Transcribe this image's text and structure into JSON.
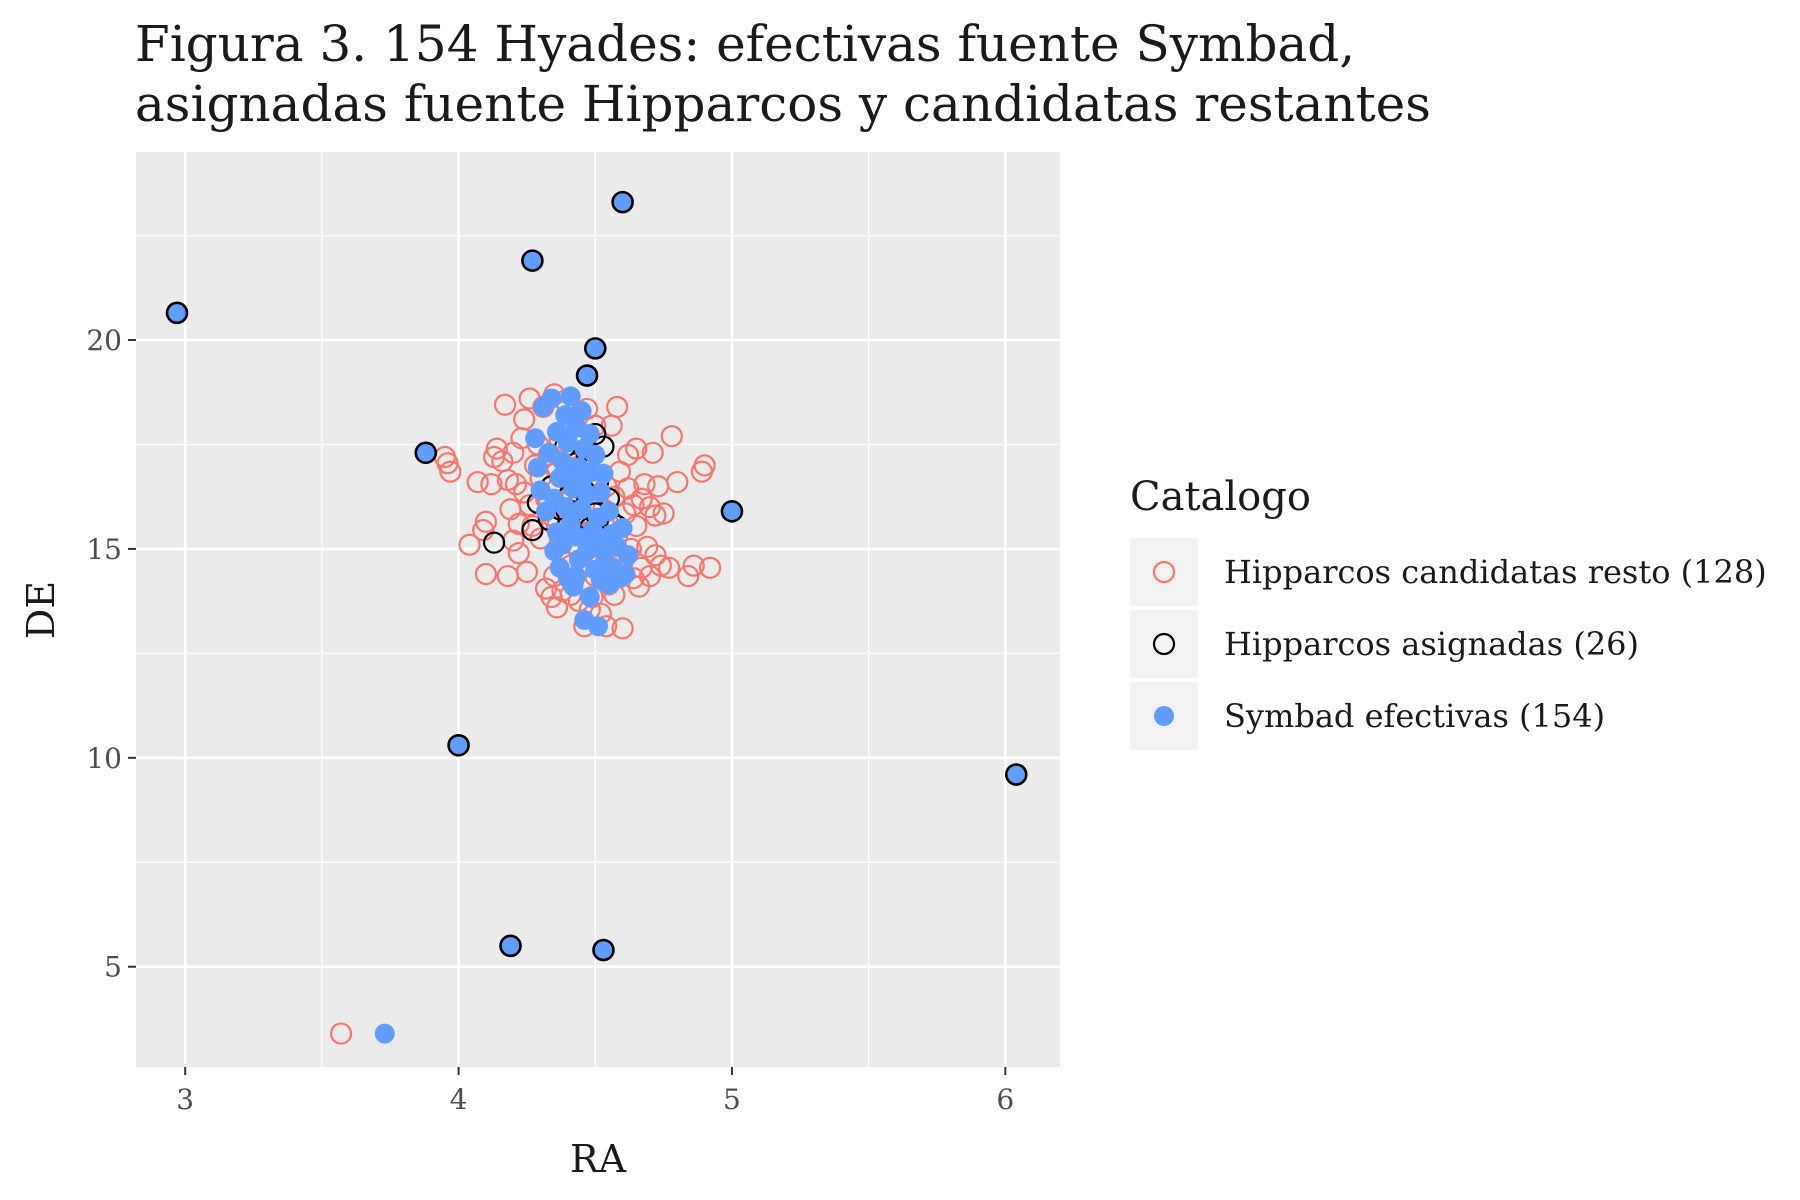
{
  "title_lines": [
    "Figura 3. 154 Hyades: efectivas fuente Symbad,",
    "asignadas fuente Hipparcos y candidatas restantes"
  ],
  "chart_data": {
    "type": "scatter",
    "xlabel": "RA",
    "ylabel": "DE",
    "xlim": [
      2.82,
      6.2
    ],
    "ylim": [
      2.6,
      24.5
    ],
    "x_ticks": [
      3,
      4,
      5,
      6
    ],
    "y_ticks": [
      5,
      10,
      15,
      20
    ],
    "grid": true,
    "legend_title": "Catalogo",
    "legend_position": "right",
    "series": [
      {
        "name": "Hipparcos candidatas resto (128)",
        "marker": "open-circle",
        "color": "#F8766D",
        "points": [
          [
            3.57,
            3.4
          ],
          [
            3.96,
            17.05
          ],
          [
            3.97,
            16.85
          ],
          [
            3.95,
            17.2
          ],
          [
            4.04,
            15.1
          ],
          [
            4.07,
            16.6
          ],
          [
            4.09,
            15.45
          ],
          [
            4.1,
            15.65
          ],
          [
            4.1,
            14.4
          ],
          [
            4.12,
            16.55
          ],
          [
            4.13,
            17.2
          ],
          [
            4.14,
            17.4
          ],
          [
            4.16,
            17.1
          ],
          [
            4.17,
            18.45
          ],
          [
            4.18,
            16.65
          ],
          [
            4.18,
            14.35
          ],
          [
            4.19,
            15.95
          ],
          [
            4.2,
            15.2
          ],
          [
            4.2,
            17.3
          ],
          [
            4.21,
            16.55
          ],
          [
            4.22,
            15.6
          ],
          [
            4.22,
            14.9
          ],
          [
            4.23,
            17.65
          ],
          [
            4.24,
            16.35
          ],
          [
            4.24,
            18.1
          ],
          [
            4.25,
            14.45
          ],
          [
            4.26,
            16.05
          ],
          [
            4.26,
            18.6
          ],
          [
            4.27,
            15.55
          ],
          [
            4.28,
            17.0
          ],
          [
            4.29,
            17.5
          ],
          [
            4.3,
            16.7
          ],
          [
            4.3,
            15.25
          ],
          [
            4.31,
            18.4
          ],
          [
            4.32,
            14.05
          ],
          [
            4.32,
            16.2
          ],
          [
            4.33,
            17.25
          ],
          [
            4.34,
            13.85
          ],
          [
            4.34,
            15.8
          ],
          [
            4.35,
            18.7
          ],
          [
            4.35,
            14.35
          ],
          [
            4.36,
            16.85
          ],
          [
            4.36,
            13.6
          ],
          [
            4.37,
            15.3
          ],
          [
            4.37,
            17.6
          ],
          [
            4.38,
            14.0
          ],
          [
            4.38,
            16.1
          ],
          [
            4.39,
            18.55
          ],
          [
            4.39,
            14.7
          ],
          [
            4.4,
            15.65
          ],
          [
            4.4,
            17.35
          ],
          [
            4.41,
            13.9
          ],
          [
            4.41,
            16.55
          ],
          [
            4.42,
            14.25
          ],
          [
            4.42,
            18.05
          ],
          [
            4.43,
            15.05
          ],
          [
            4.43,
            16.95
          ],
          [
            4.44,
            13.75
          ],
          [
            4.44,
            17.8
          ],
          [
            4.45,
            14.55
          ],
          [
            4.45,
            15.85
          ],
          [
            4.46,
            13.15
          ],
          [
            4.46,
            16.35
          ],
          [
            4.47,
            18.35
          ],
          [
            4.47,
            14.85
          ],
          [
            4.48,
            17.15
          ],
          [
            4.48,
            15.4
          ],
          [
            4.49,
            13.85
          ],
          [
            4.49,
            16.75
          ],
          [
            4.5,
            14.35
          ],
          [
            4.5,
            17.95
          ],
          [
            4.51,
            15.25
          ],
          [
            4.51,
            16.05
          ],
          [
            4.52,
            13.45
          ],
          [
            4.52,
            14.75
          ],
          [
            4.53,
            17.45
          ],
          [
            4.53,
            15.65
          ],
          [
            4.54,
            13.15
          ],
          [
            4.54,
            16.5
          ],
          [
            4.55,
            14.15
          ],
          [
            4.55,
            15.1
          ],
          [
            4.56,
            17.95
          ],
          [
            4.56,
            14.55
          ],
          [
            4.57,
            16.25
          ],
          [
            4.57,
            13.9
          ],
          [
            4.58,
            18.4
          ],
          [
            4.58,
            15.3
          ],
          [
            4.59,
            16.85
          ],
          [
            4.6,
            14.75
          ],
          [
            4.6,
            13.1
          ],
          [
            4.61,
            15.85
          ],
          [
            4.62,
            17.25
          ],
          [
            4.62,
            16.45
          ],
          [
            4.63,
            15.0
          ],
          [
            4.64,
            14.3
          ],
          [
            4.64,
            16.05
          ],
          [
            4.65,
            17.4
          ],
          [
            4.65,
            15.55
          ],
          [
            4.66,
            14.1
          ],
          [
            4.67,
            16.2
          ],
          [
            4.67,
            14.55
          ],
          [
            4.68,
            16.55
          ],
          [
            4.69,
            15.05
          ],
          [
            4.7,
            16.0
          ],
          [
            4.7,
            14.35
          ],
          [
            4.71,
            17.3
          ],
          [
            4.72,
            15.8
          ],
          [
            4.72,
            14.85
          ],
          [
            4.73,
            16.5
          ],
          [
            4.74,
            14.6
          ],
          [
            4.75,
            15.85
          ],
          [
            4.77,
            14.55
          ],
          [
            4.78,
            17.7
          ],
          [
            4.8,
            16.6
          ],
          [
            4.84,
            14.35
          ],
          [
            4.86,
            14.6
          ],
          [
            4.89,
            16.85
          ],
          [
            4.9,
            17.0
          ],
          [
            4.92,
            14.55
          ],
          [
            4.44,
            16.15
          ],
          [
            4.36,
            15.55
          ],
          [
            4.46,
            17.55
          ],
          [
            4.41,
            14.6
          ],
          [
            4.53,
            15.95
          ],
          [
            4.48,
            13.55
          ]
        ]
      },
      {
        "name": "Hipparcos asignadas (26)",
        "marker": "open-circle",
        "color": "#000000",
        "points": [
          [
            4.13,
            15.15
          ],
          [
            4.27,
            15.45
          ],
          [
            4.29,
            16.1
          ],
          [
            4.33,
            15.7
          ],
          [
            4.34,
            16.5
          ],
          [
            4.37,
            15.95
          ],
          [
            4.39,
            17.45
          ],
          [
            4.4,
            16.25
          ],
          [
            4.41,
            16.85
          ],
          [
            4.42,
            15.9
          ],
          [
            4.43,
            17.05
          ],
          [
            4.44,
            16.7
          ],
          [
            4.45,
            15.75
          ],
          [
            4.46,
            16.4
          ],
          [
            4.47,
            17.25
          ],
          [
            4.48,
            15.5
          ],
          [
            4.49,
            16.05
          ],
          [
            4.5,
            17.75
          ],
          [
            4.5,
            15.85
          ],
          [
            4.51,
            16.6
          ],
          [
            4.52,
            15.35
          ],
          [
            4.53,
            17.45
          ],
          [
            4.55,
            16.2
          ],
          [
            4.56,
            15.65
          ],
          [
            4.58,
            15.55
          ],
          [
            4.47,
            16.9
          ]
        ]
      },
      {
        "name": "Symbad efectivas (154)",
        "marker": "filled-circle",
        "color": "#619CFF",
        "points": [
          [
            3.73,
            3.4
          ],
          [
            4.28,
            17.65
          ],
          [
            4.29,
            16.95
          ],
          [
            4.3,
            16.4
          ],
          [
            4.31,
            18.4
          ],
          [
            4.32,
            15.9
          ],
          [
            4.33,
            17.3
          ],
          [
            4.34,
            18.6
          ],
          [
            4.35,
            16.2
          ],
          [
            4.35,
            14.95
          ],
          [
            4.36,
            17.8
          ],
          [
            4.36,
            15.4
          ],
          [
            4.37,
            16.7
          ],
          [
            4.37,
            14.55
          ],
          [
            4.38,
            17.1
          ],
          [
            4.38,
            15.1
          ],
          [
            4.39,
            18.2
          ],
          [
            4.39,
            16.0
          ],
          [
            4.4,
            14.3
          ],
          [
            4.4,
            17.55
          ],
          [
            4.41,
            15.6
          ],
          [
            4.41,
            18.65
          ],
          [
            4.42,
            16.45
          ],
          [
            4.42,
            14.1
          ],
          [
            4.43,
            17.9
          ],
          [
            4.43,
            15.3
          ],
          [
            4.44,
            16.95
          ],
          [
            4.44,
            14.75
          ],
          [
            4.45,
            18.3
          ],
          [
            4.45,
            15.95
          ],
          [
            4.46,
            17.4
          ],
          [
            4.46,
            13.3
          ],
          [
            4.47,
            14.95
          ],
          [
            4.47,
            16.3
          ],
          [
            4.48,
            17.75
          ],
          [
            4.48,
            13.85
          ],
          [
            4.49,
            15.45
          ],
          [
            4.49,
            16.85
          ],
          [
            4.5,
            14.5
          ],
          [
            4.5,
            17.25
          ],
          [
            4.51,
            15.75
          ],
          [
            4.51,
            13.15
          ],
          [
            4.52,
            16.35
          ],
          [
            4.52,
            14.25
          ],
          [
            4.53,
            15.25
          ],
          [
            4.53,
            16.8
          ],
          [
            4.54,
            14.65
          ],
          [
            4.55,
            15.9
          ],
          [
            4.55,
            14.15
          ],
          [
            4.56,
            15.35
          ],
          [
            4.57,
            14.5
          ],
          [
            4.58,
            15.05
          ],
          [
            4.59,
            14.3
          ],
          [
            4.6,
            15.5
          ],
          [
            4.61,
            14.4
          ],
          [
            4.62,
            14.85
          ],
          [
            4.45,
            16.6
          ],
          [
            4.4,
            16.9
          ],
          [
            4.48,
            15.1
          ],
          [
            4.52,
            15.0
          ],
          [
            4.43,
            14.35
          ]
        ]
      },
      {
        "name": "Symbad efectivas (154) / Hipparcos asignadas (26)",
        "marker": "filled-outlined-circle",
        "color": "#619CFF",
        "stroke": "#000000",
        "points": [
          [
            2.97,
            20.65
          ],
          [
            3.88,
            17.3
          ],
          [
            4.0,
            10.3
          ],
          [
            4.19,
            5.5
          ],
          [
            4.27,
            21.9
          ],
          [
            4.47,
            19.15
          ],
          [
            4.5,
            19.8
          ],
          [
            4.53,
            5.4
          ],
          [
            4.6,
            23.3
          ],
          [
            5.0,
            15.9
          ],
          [
            6.04,
            9.6
          ]
        ]
      }
    ]
  }
}
